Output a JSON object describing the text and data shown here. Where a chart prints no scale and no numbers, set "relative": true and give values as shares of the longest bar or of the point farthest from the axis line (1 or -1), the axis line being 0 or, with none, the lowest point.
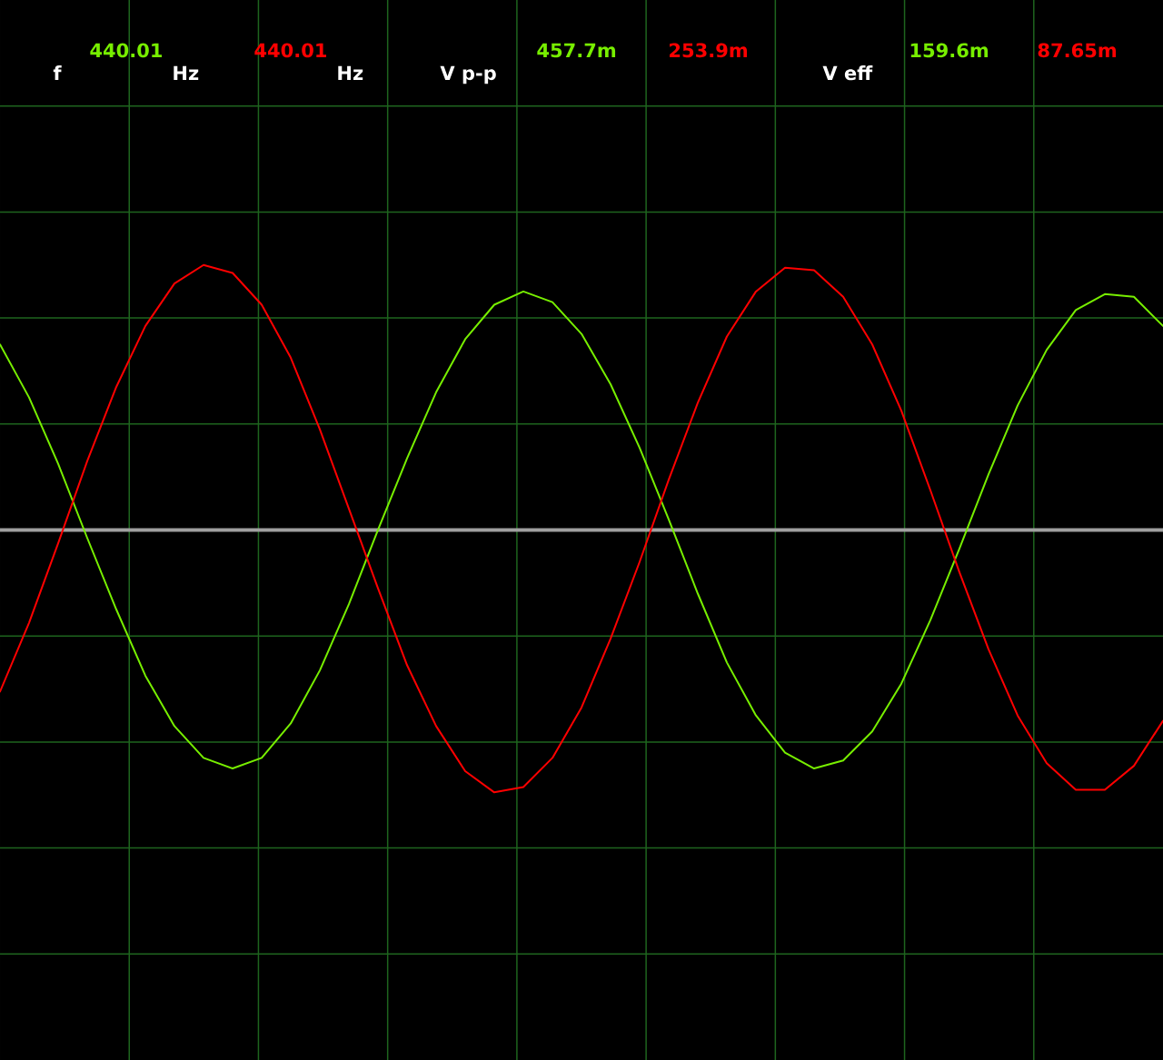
{
  "chart_data": {
    "type": "line",
    "relative": true,
    "grid": true,
    "categories": [
      null,
      null,
      null,
      null,
      null,
      null,
      null,
      null,
      null,
      null,
      null,
      null,
      null,
      null,
      null,
      null,
      null,
      null,
      null,
      null,
      null,
      null,
      null,
      null,
      null,
      null,
      null,
      null,
      null,
      null,
      null,
      null,
      null,
      null,
      null,
      null,
      null,
      null,
      null,
      null,
      null
    ],
    "series": [
      {
        "color": "#77ee00",
        "values": [
          0.7,
          0.5,
          0.25,
          -0.03,
          -0.3,
          -0.55,
          -0.74,
          -0.86,
          -0.9,
          -0.86,
          -0.73,
          -0.53,
          -0.28,
          0.0,
          0.27,
          0.52,
          0.72,
          0.85,
          0.9,
          0.86,
          0.74,
          0.55,
          0.31,
          0.04,
          -0.24,
          -0.5,
          -0.7,
          -0.84,
          -0.9,
          -0.87,
          -0.76,
          -0.58,
          -0.34,
          -0.07,
          0.21,
          0.47,
          0.68,
          0.83,
          0.89,
          0.88,
          0.77
        ]
      },
      {
        "color": "#ff0000",
        "values": [
          -0.61,
          -0.35,
          -0.05,
          0.26,
          0.54,
          0.77,
          0.93,
          1.0,
          0.97,
          0.85,
          0.65,
          0.38,
          0.08,
          -0.22,
          -0.51,
          -0.74,
          -0.91,
          -0.99,
          -0.97,
          -0.86,
          -0.67,
          -0.41,
          -0.12,
          0.19,
          0.48,
          0.73,
          0.9,
          0.99,
          0.98,
          0.88,
          0.7,
          0.45,
          0.15,
          -0.16,
          -0.45,
          -0.7,
          -0.88,
          -0.98,
          -0.98,
          -0.89,
          -0.72
        ]
      }
    ],
    "annotations": [
      "f",
      "440.01",
      "Hz",
      "440.01",
      "Hz",
      "V p-p",
      "457.7m",
      "253.9m",
      "V eff",
      "159.6m",
      "87.65m"
    ]
  }
}
